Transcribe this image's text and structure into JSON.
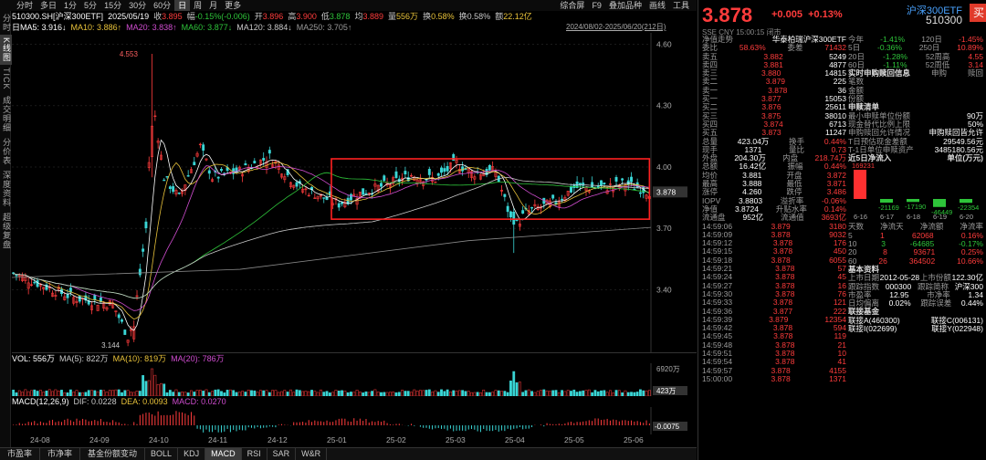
{
  "topbar": {
    "periods": [
      "分时",
      "多日",
      "1分",
      "5分",
      "15分",
      "30分",
      "60分",
      "日",
      "周",
      "月",
      "更多"
    ],
    "active": "日",
    "right": [
      "综合屏",
      "F9",
      "叠加品种",
      "画线",
      "工具"
    ]
  },
  "leftnav": [
    "分时",
    "K线图",
    "TICK",
    "成交明细",
    "分价表",
    "深度资料",
    "超级复盘"
  ],
  "leftnav_active": "K线图",
  "info": {
    "code": "510300.SH[沪深300ETF]",
    "date": "2025/05/19",
    "close_label": "收",
    "close": "3.895",
    "chg_label": "幅",
    "chg": "-0.15%(-0.006)",
    "open_label": "开",
    "open": "3.896",
    "high_label": "高",
    "high": "3.900",
    "low_label": "低",
    "low": "3.878",
    "avg_label": "均",
    "avg": "3.889",
    "vol_label": "量",
    "vol": "556万",
    "turn_label": "换",
    "turn": "0.58%",
    "turn2": "换0.58%",
    "amt_label": "额",
    "amt": "22.12亿"
  },
  "ma": {
    "title": "日MA5",
    "ma5": "日MA5: 3.916↓",
    "ma10": "MA10: 3.886↑",
    "ma20": "MA20: 3.838↑",
    "ma60": "MA60: 3.877↓",
    "ma120": "MA120: 3.884↓",
    "ma250": "MA250: 3.705↑"
  },
  "daterange": "2024/08/02-2025/06/20(212日)",
  "yaxis": [
    "4.60",
    "4.30",
    "4.00",
    "3.70",
    "3.40"
  ],
  "current_price_tag": "3.878",
  "hi_label": "4.553",
  "lo_label": "3.144",
  "vol": {
    "label": "VOL: 556万",
    "ma5": "MA(5): 822万",
    "ma10": "MA(10): 819万",
    "ma20": "MA(20): 786万",
    "axis_top": "6920万",
    "axis_cur": "423万"
  },
  "macd": {
    "label": "MACD(12,26,9)",
    "dif": "DIF: 0.0228",
    "dea": "DEA: 0.0093",
    "macd": "MACD: 0.0270",
    "axis_cur": "-0.0075"
  },
  "xaxis": [
    "24-08",
    "24-09",
    "24-10",
    "24-11",
    "24-12",
    "25-01",
    "25-02",
    "25-03",
    "25-04",
    "25-05",
    "25-06"
  ],
  "bottomtabs": [
    "市盈率",
    "市净率",
    "基金份额变动",
    "BOLL",
    "KDJ",
    "MACD",
    "RSI",
    "SAR",
    "W&R"
  ],
  "bottom_active": "MACD",
  "colors": {
    "up": "#ff3c3c",
    "down": "#2ec43a",
    "ma5": "#ffffff",
    "ma10": "#e8c23a",
    "ma20": "#d04dd0",
    "ma60": "#2ec43a",
    "ma120": "#c8c8c8",
    "ma250": "#8a8a8a",
    "highlight": "#ff2020"
  },
  "right": {
    "price": "3.878",
    "chg": "+0.005",
    "pct": "+0.13%",
    "name": "沪深300ETF",
    "code": "510300",
    "buy": "买",
    "meta": "SSE  CNY  15:00:15  闭市",
    "hdr": [
      [
        "净值走势",
        "华泰柏瑞沪深300ETF"
      ],
      [
        "委比",
        "58.63%",
        "委差",
        "71432"
      ]
    ],
    "asks": [
      [
        "卖五",
        "3.882",
        "5249"
      ],
      [
        "卖四",
        "3.881",
        "4877"
      ],
      [
        "卖三",
        "3.880",
        "14815"
      ],
      [
        "卖二",
        "3.879",
        "225"
      ],
      [
        "卖一",
        "3.878",
        "36"
      ]
    ],
    "bids": [
      [
        "买一",
        "3.877",
        "15053"
      ],
      [
        "买二",
        "3.876",
        "25611"
      ],
      [
        "买三",
        "3.875",
        "38010"
      ],
      [
        "买四",
        "3.874",
        "6713"
      ],
      [
        "买五",
        "3.873",
        "11247"
      ]
    ],
    "stats": [
      [
        "总量",
        "423.04万",
        "换手",
        "0.44%"
      ],
      [
        "现手",
        "1371",
        "量比",
        "0.73"
      ],
      [
        "外盘",
        "204.30万",
        "内盘",
        "218.74万"
      ],
      [
        "总额",
        "16.42亿",
        "振幅",
        "0.44%"
      ],
      [
        "均价",
        "3.881",
        "开盘",
        "3.872"
      ],
      [
        "最高",
        "3.888",
        "最低",
        "3.871"
      ],
      [
        "涨停",
        "4.260",
        "跌停",
        "3.486"
      ],
      [
        "IOPV",
        "3.8803",
        "溢折率",
        "-0.06%"
      ],
      [
        "净值",
        "3.8724",
        "升贴水率",
        "0.14%"
      ],
      [
        "流通盘",
        "952亿",
        "流通值",
        "3693亿"
      ]
    ],
    "ticks": [
      [
        "14:59:06",
        "3.879",
        "3180"
      ],
      [
        "14:59:09",
        "3.878",
        "9032"
      ],
      [
        "14:59:12",
        "3.878",
        "176"
      ],
      [
        "14:59:15",
        "3.878",
        "450"
      ],
      [
        "14:59:18",
        "3.878",
        "6055"
      ],
      [
        "14:59:21",
        "3.878",
        "57"
      ],
      [
        "14:59:24",
        "3.878",
        "45"
      ],
      [
        "14:59:27",
        "3.878",
        "16"
      ],
      [
        "14:59:30",
        "3.878",
        "76"
      ],
      [
        "14:59:33",
        "3.878",
        "121"
      ],
      [
        "14:59:36",
        "3.877",
        "222"
      ],
      [
        "14:59:39",
        "3.879",
        "12354"
      ],
      [
        "14:59:42",
        "3.878",
        "594"
      ],
      [
        "14:59:45",
        "3.878",
        "119"
      ],
      [
        "14:59:48",
        "3.878",
        "21"
      ],
      [
        "14:59:51",
        "3.878",
        "10"
      ],
      [
        "14:59:54",
        "3.878",
        "41"
      ],
      [
        "14:59:57",
        "3.878",
        "4155"
      ],
      [
        "15:00:00",
        "3.878",
        "1371"
      ]
    ],
    "perf": [
      [
        "今年",
        "-1.41%",
        "120日",
        "-1.45%"
      ],
      [
        "5日",
        "-0.36%",
        "250日",
        "10.89%"
      ],
      [
        "20日",
        "-1.28%",
        "52周高",
        "4.55"
      ],
      [
        "60日",
        "-1.11%",
        "52周低",
        "3.14"
      ]
    ],
    "subscr_hdr": [
      "实时申购赎回信息",
      "申购",
      "赎回"
    ],
    "subscr": [
      "笔数",
      "金额",
      "份额"
    ],
    "list_title": "申赎清单",
    "list": [
      [
        "最小申赎单位份额",
        "90万"
      ],
      [
        "现金替代比例上限",
        "50%"
      ],
      [
        "申购赎回允许情况",
        "申购赎回皆允许"
      ],
      [
        "T日预估现金差额",
        "29549.56元"
      ],
      [
        "T-1日单位申赎资产",
        "3485180.56元"
      ]
    ],
    "flow_title": "近5日净流入",
    "flow_unit": "单位(万元)",
    "flow": [
      {
        "d": "6-16",
        "v": 169231
      },
      {
        "d": "6-17",
        "v": -21169
      },
      {
        "d": "6-18",
        "v": -17190
      },
      {
        "d": "6-19",
        "v": -46449
      },
      {
        "d": "6-20",
        "v": -22354
      }
    ],
    "flow_labels": [
      "169231",
      "-21169",
      "-17190",
      "-46449",
      "-22354"
    ],
    "flowtbl_hdr": [
      "天数",
      "净流天",
      "净流额",
      "净流率"
    ],
    "flowtbl": [
      [
        "5",
        "1",
        "62068",
        "0.16%"
      ],
      [
        "10",
        "3",
        "-64685",
        "-0.17%"
      ],
      [
        "20",
        "8",
        "93671",
        "0.25%"
      ],
      [
        "60",
        "26",
        "364502",
        "10.66%"
      ]
    ],
    "basic_title": "基本资料",
    "basic": [
      [
        "上市日期",
        "2012-05-28",
        "上市份额",
        "122.30亿"
      ],
      [
        "跟踪指数",
        "000300",
        "跟踪简称",
        "沪深300"
      ],
      [
        "市盈率",
        "12.95",
        "市净率",
        "1.34"
      ],
      [
        "日均偏离",
        "0.02%",
        "跟踪误差",
        "0.44%"
      ]
    ],
    "fund_title": "联接基金",
    "fund": [
      [
        "联接A(460300)",
        "联接C(006131)"
      ],
      [
        "联接I(022699)",
        "联接Y(022948)"
      ]
    ]
  }
}
